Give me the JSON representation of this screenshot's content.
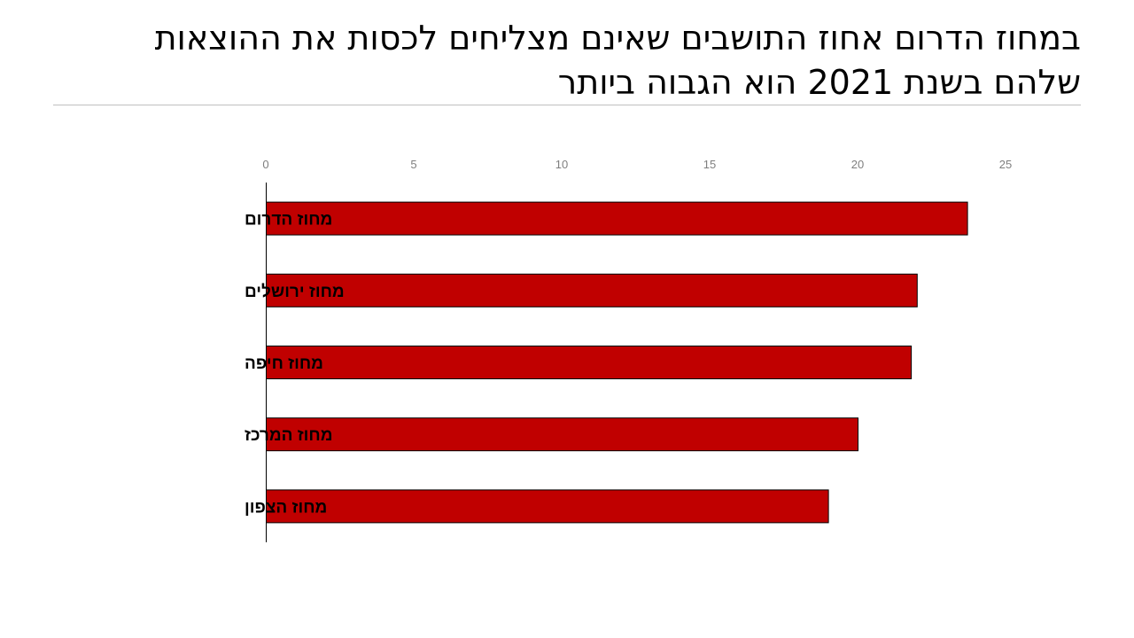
{
  "slide": {
    "title_lines": [
      "במחוז הדרום אחוז התושבים שאינם מצליחים לכסות את ההוצאות",
      "שלהם בשנת 2021 הוא הגבוה ביותר"
    ]
  },
  "chart_data": {
    "type": "bar",
    "orientation": "horizontal",
    "categories": [
      "מחוז הדרום",
      "מחוז ירושלים",
      "מחוז חיפה",
      "מחוז המרכז",
      "מחוז הצפון"
    ],
    "values": [
      23.7,
      22.0,
      21.8,
      20.0,
      19.0
    ],
    "xlim": [
      0,
      25
    ],
    "xticks": [
      0,
      5,
      10,
      15,
      20,
      25
    ],
    "xaxis_position": "top",
    "grid": false,
    "legend": "none",
    "bar_color": "#c00000",
    "bar_border": "#000000"
  }
}
